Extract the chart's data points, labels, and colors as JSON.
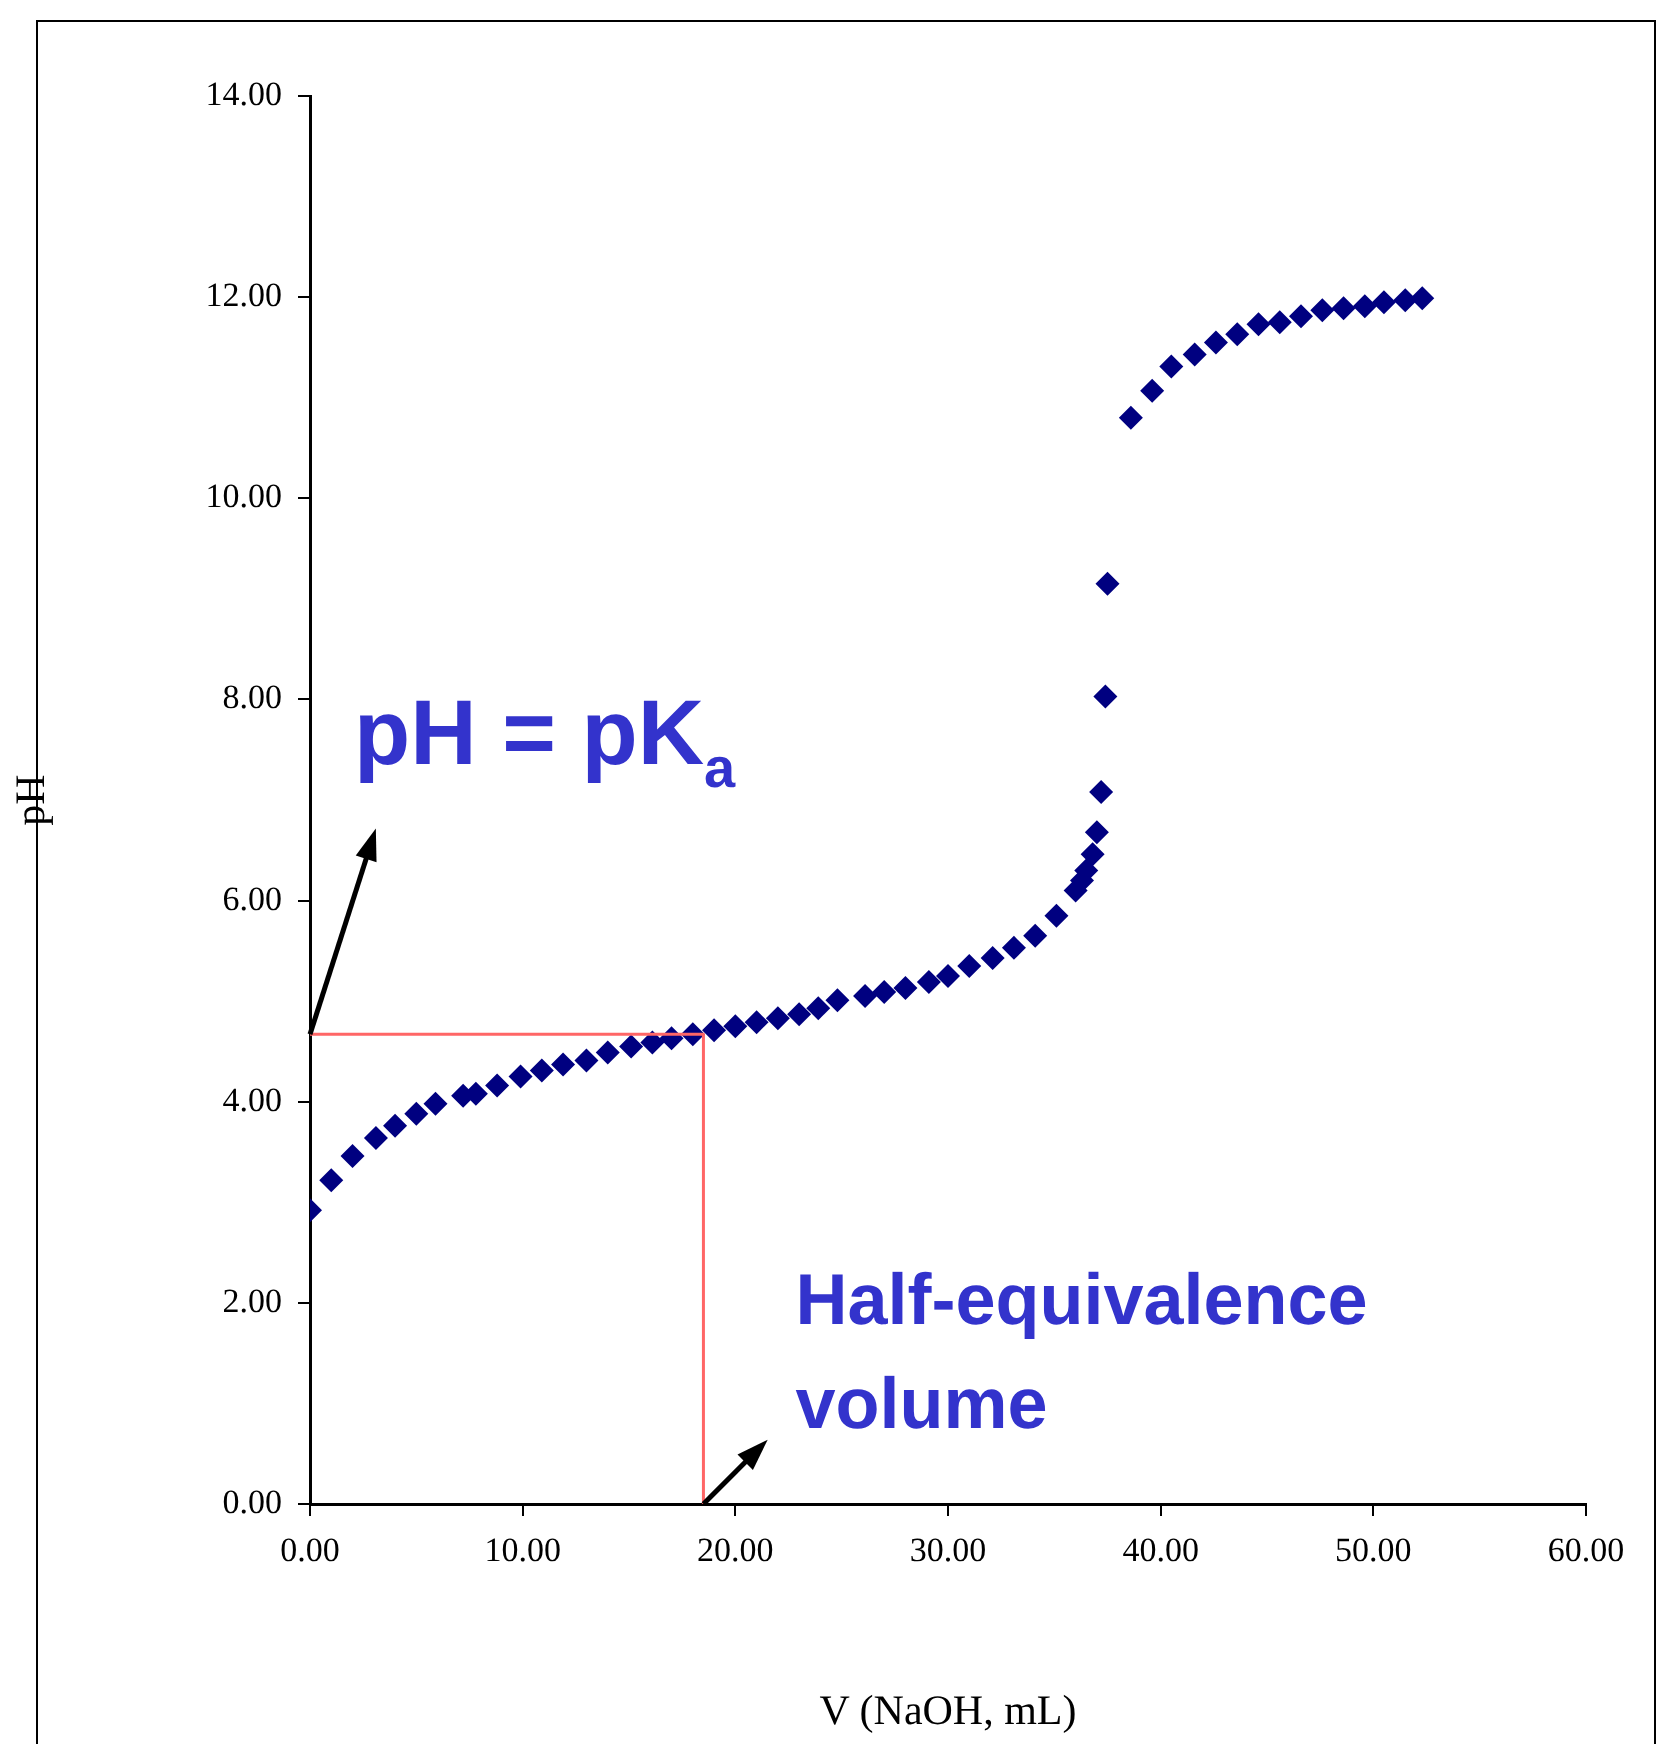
{
  "chart_data": {
    "type": "scatter",
    "xlabel": "V (NaOH, mL)",
    "ylabel": "pH",
    "xlim": [
      0,
      60
    ],
    "ylim": [
      0,
      14
    ],
    "xticks": [
      {
        "value": 0,
        "label": "0.00"
      },
      {
        "value": 10,
        "label": "10.00"
      },
      {
        "value": 20,
        "label": "20.00"
      },
      {
        "value": 30,
        "label": "30.00"
      },
      {
        "value": 40,
        "label": "40.00"
      },
      {
        "value": 50,
        "label": "50.00"
      },
      {
        "value": 60,
        "label": "60.00"
      }
    ],
    "yticks": [
      {
        "value": 0,
        "label": "0.00"
      },
      {
        "value": 2,
        "label": "2.00"
      },
      {
        "value": 4,
        "label": "4.00"
      },
      {
        "value": 6,
        "label": "6.00"
      },
      {
        "value": 8,
        "label": "8.00"
      },
      {
        "value": 10,
        "label": "10.00"
      },
      {
        "value": 12,
        "label": "12.00"
      },
      {
        "value": 14,
        "label": "14.00"
      }
    ],
    "grid": false,
    "legend": false,
    "marker": "diamond",
    "series": [
      {
        "type": "line",
        "color": "#ff6666",
        "marker": "none",
        "line_style": "solid",
        "x": [
          0,
          18.5,
          18.5
        ],
        "values": [
          4.67,
          4.67,
          0
        ]
      },
      {
        "type": "scatter",
        "color": "#000080",
        "x": [
          0,
          1,
          2,
          3.1,
          4,
          5,
          5.9,
          7.2,
          7.8,
          8.8,
          9.9,
          10.9,
          11.9,
          13,
          14,
          15.1,
          16.1,
          17,
          18,
          19,
          20,
          21,
          22,
          23,
          23.9,
          24.8,
          26.1,
          27,
          28,
          29.1,
          30,
          31,
          32.1,
          33.1,
          34.1,
          35.1,
          36,
          36.3,
          36.5,
          36.8,
          37,
          37.2,
          37.4,
          37.5,
          38.6,
          39.6,
          40.5,
          41.6,
          42.6,
          43.6,
          44.6,
          45.6,
          46.6,
          47.6,
          48.6,
          49.6,
          50.5,
          51.5,
          52.3
        ],
        "values": [
          2.92,
          3.22,
          3.46,
          3.64,
          3.76,
          3.88,
          3.98,
          4.06,
          4.08,
          4.16,
          4.25,
          4.31,
          4.37,
          4.41,
          4.49,
          4.55,
          4.59,
          4.63,
          4.67,
          4.71,
          4.75,
          4.79,
          4.83,
          4.87,
          4.93,
          5.01,
          5.05,
          5.09,
          5.13,
          5.19,
          5.25,
          5.35,
          5.43,
          5.53,
          5.65,
          5.85,
          6.1,
          6.2,
          6.3,
          6.46,
          6.68,
          7.08,
          8.03,
          9.15,
          10.8,
          11.07,
          11.31,
          11.43,
          11.55,
          11.63,
          11.73,
          11.75,
          11.81,
          11.87,
          11.89,
          11.91,
          11.95,
          11.97,
          11.99
        ]
      }
    ],
    "annotations": [
      {
        "text": "pH = pK$_{a}$",
        "x": 0,
        "y": 4.67
      },
      {
        "text": "Half-equivalence\nvolume",
        "x": 18.5,
        "y": 0
      }
    ]
  }
}
